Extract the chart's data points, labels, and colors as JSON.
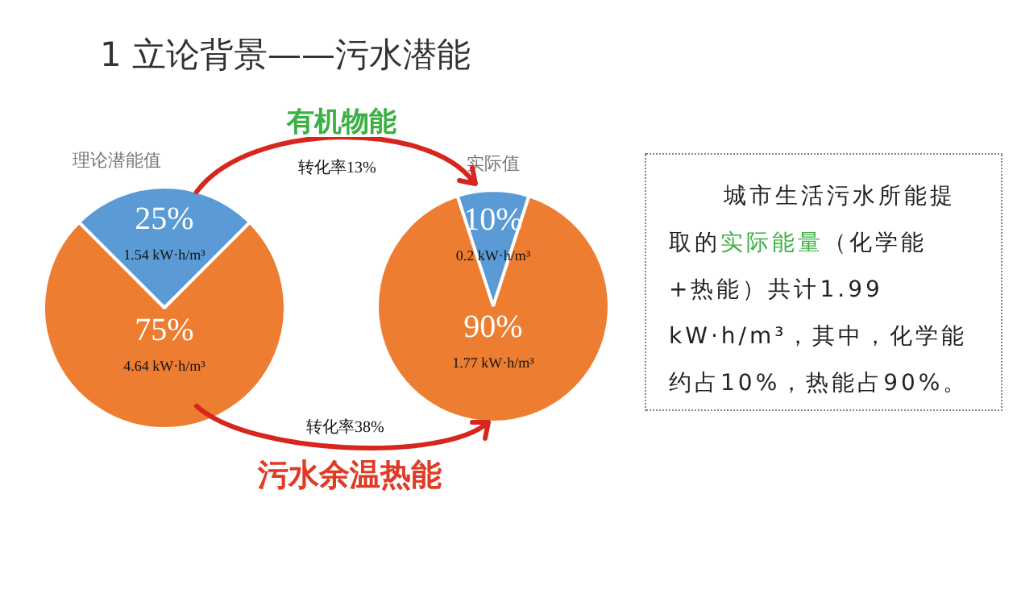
{
  "chart_data": [
    {
      "type": "pie",
      "title": "理论潜能值",
      "categories": [
        null,
        null
      ],
      "values": [
        25,
        75
      ],
      "colors": [
        "#5b9bd5",
        "#ed7d31"
      ],
      "value_labels": [
        "25%",
        "75%"
      ],
      "annotations": [
        "1.54 kW·h/m³",
        "4.64 kW·h/m³"
      ]
    },
    {
      "type": "pie",
      "title": "实际值",
      "categories": [
        null,
        null
      ],
      "values": [
        10,
        90
      ],
      "colors": [
        "#5b9bd5",
        "#ed7d31"
      ],
      "value_labels": [
        "10%",
        "90%"
      ],
      "annotations": [
        "0.2 kW·h/m³",
        "1.77 kW·h/m³"
      ]
    },
    {
      "type": "other",
      "title": "1 立论背景——污水潜能",
      "annotations": [
        "有机物能",
        "转化率13%",
        "转化率38%",
        "污水余温热能",
        "城市生活污水所能提取的",
        "实际能量",
        "（化学能+热能）共计1.99 kW·h/m³，其中，化学能约占10%，热能占90%。"
      ]
    }
  ]
}
